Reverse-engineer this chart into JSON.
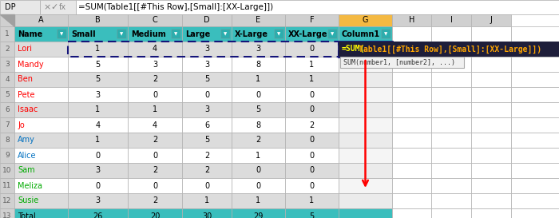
{
  "formula_bar_cell": "DP",
  "formula_bar_text": "=SUM(Table1[[#This Row],[Small]:[XX-Large]])",
  "col_letters": [
    "",
    "A",
    "B",
    "C",
    "D",
    "E",
    "F",
    "G",
    "H",
    "I",
    "J"
  ],
  "headers": [
    "Name",
    "Small",
    "Medium",
    "Large",
    "X-Large",
    "XX-Large",
    "Column1"
  ],
  "header_bg": "#3ABEBD",
  "rows": [
    [
      "Lori",
      1,
      4,
      3,
      3,
      0
    ],
    [
      "Mandy",
      5,
      3,
      3,
      8,
      1
    ],
    [
      "Ben",
      5,
      2,
      5,
      1,
      1
    ],
    [
      "Pete",
      3,
      0,
      0,
      0,
      0
    ],
    [
      "Isaac",
      1,
      1,
      3,
      5,
      0
    ],
    [
      "Jo",
      4,
      4,
      6,
      8,
      2
    ],
    [
      "Amy",
      1,
      2,
      5,
      2,
      0
    ],
    [
      "Alice",
      0,
      0,
      2,
      1,
      0
    ],
    [
      "Sam",
      3,
      2,
      2,
      0,
      0
    ],
    [
      "Meliza",
      0,
      0,
      0,
      0,
      0
    ],
    [
      "Susie",
      3,
      2,
      1,
      1,
      1
    ]
  ],
  "totals": [
    "Total",
    26,
    20,
    30,
    29,
    5
  ],
  "name_colors": {
    "Lori": "#FF0000",
    "Mandy": "#FF0000",
    "Ben": "#FF0000",
    "Pete": "#FF0000",
    "Isaac": "#FF0000",
    "Jo": "#FF0000",
    "Amy": "#0070C0",
    "Alice": "#0070C0",
    "Sam": "#00AA00",
    "Meliza": "#00AA00",
    "Susie": "#00AA00"
  },
  "row_bg_white": "#FFFFFF",
  "row_bg_gray": "#DCDCDC",
  "total_bg": "#3ABEBD",
  "col_hdr_bg": "#D0D0D0",
  "col_g_hdr_bg": "#F4B942",
  "row_num_bg": "#D8D8D8",
  "row_num_bg_active": "#F4B942",
  "active_border": "#15157A",
  "dash_color": "#15157A",
  "tooltip_dark_bg": "#1E1E3A",
  "tooltip_light_bg": "#F0F0F0",
  "formula_bar_bg": "#FFFFFF",
  "fb_left_bg": "#E8E8E8",
  "grid_color": "#B0B0B0",
  "arrow_color": "#FF0000",
  "col_g_data_bg_white": "#F5F5F5",
  "col_g_data_bg_gray": "#EBEBEB"
}
